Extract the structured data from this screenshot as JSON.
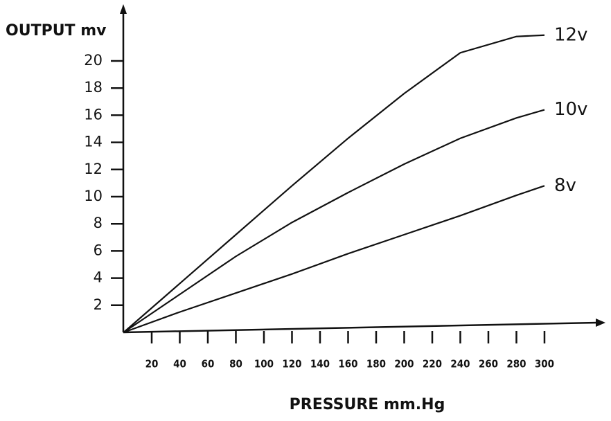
{
  "chart_data": {
    "type": "line",
    "y_label": "OUTPUT mv",
    "x_label": "PRESSURE mm.Hg",
    "x": [
      0,
      40,
      80,
      120,
      160,
      200,
      240,
      280,
      300
    ],
    "series": [
      {
        "name": "12v",
        "color": "#111111",
        "values": [
          0,
          3.6,
          7.2,
          10.8,
          14.3,
          17.6,
          20.6,
          21.8,
          21.9
        ]
      },
      {
        "name": "10v",
        "color": "#111111",
        "values": [
          0,
          2.8,
          5.6,
          8.1,
          10.3,
          12.4,
          14.3,
          15.8,
          16.4
        ]
      },
      {
        "name": "8v",
        "color": "#111111",
        "values": [
          0,
          1.5,
          2.9,
          4.3,
          5.8,
          7.2,
          8.6,
          10.1,
          10.8
        ]
      }
    ],
    "xlim": [
      0,
      341
    ],
    "ylim": [
      0,
      24
    ],
    "xticks": [
      20,
      40,
      60,
      80,
      100,
      120,
      140,
      160,
      180,
      200,
      220,
      240,
      260,
      280,
      300
    ],
    "yticks": [
      2,
      4,
      6,
      8,
      10,
      12,
      14,
      16,
      18,
      20
    ],
    "grid": false
  }
}
